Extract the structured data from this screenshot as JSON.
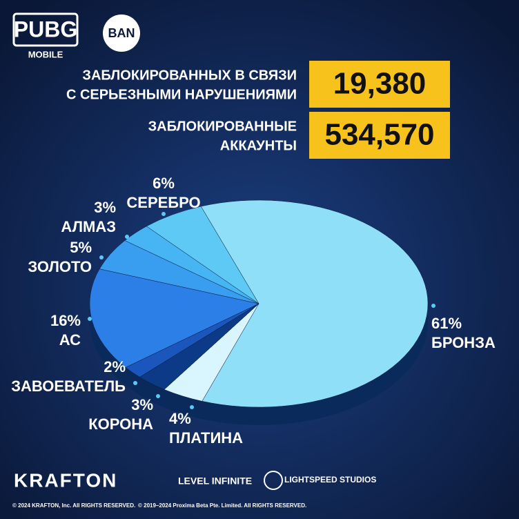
{
  "header": {
    "logo": "PUBG",
    "logo_sub": "MOBILE",
    "badge": "BAN"
  },
  "stats": [
    {
      "label": [
        "ЗАБЛОКИРОВАННЫХ В СВЯЗИ",
        "С СЕРЬЕЗНЫМИ НАРУШЕНИЯМИ"
      ],
      "value": "19,380"
    },
    {
      "label": [
        "ЗАБЛОКИРОВАННЫЕ",
        "АККАУНТЫ"
      ],
      "value": "534,570"
    }
  ],
  "chart_data": {
    "type": "pie",
    "categories": [
      "БРОНЗА",
      "ПЛАТИНА",
      "КОРОНА",
      "ЗАВОЕВАТЕЛЬ",
      "АС",
      "ЗОЛОТО",
      "АЛМАЗ",
      "СЕРЕБРО"
    ],
    "values": [
      61,
      4,
      3,
      2,
      16,
      5,
      3,
      6
    ],
    "value_labels": [
      "61%",
      "4%",
      "3%",
      "2%",
      "16%",
      "5%",
      "3%",
      "6%"
    ],
    "colors": [
      "#8fdff8",
      "#d9f6ff",
      "#0c3a86",
      "#1a56bb",
      "#2b7fe6",
      "#3a9ef0",
      "#47b4f4",
      "#5fc9f6"
    ]
  },
  "footer": {
    "brands": [
      "KRAFTON",
      "LEVEL INFINITE",
      "LIGHTSPEED STUDIOS"
    ],
    "copyright": [
      "© 2024 KRAFTON, Inc. All RIGHTS RESERVED.",
      "© 2019–2024 Proxima Beta Pte. Limited. All RIGHTS RESERVED."
    ]
  }
}
